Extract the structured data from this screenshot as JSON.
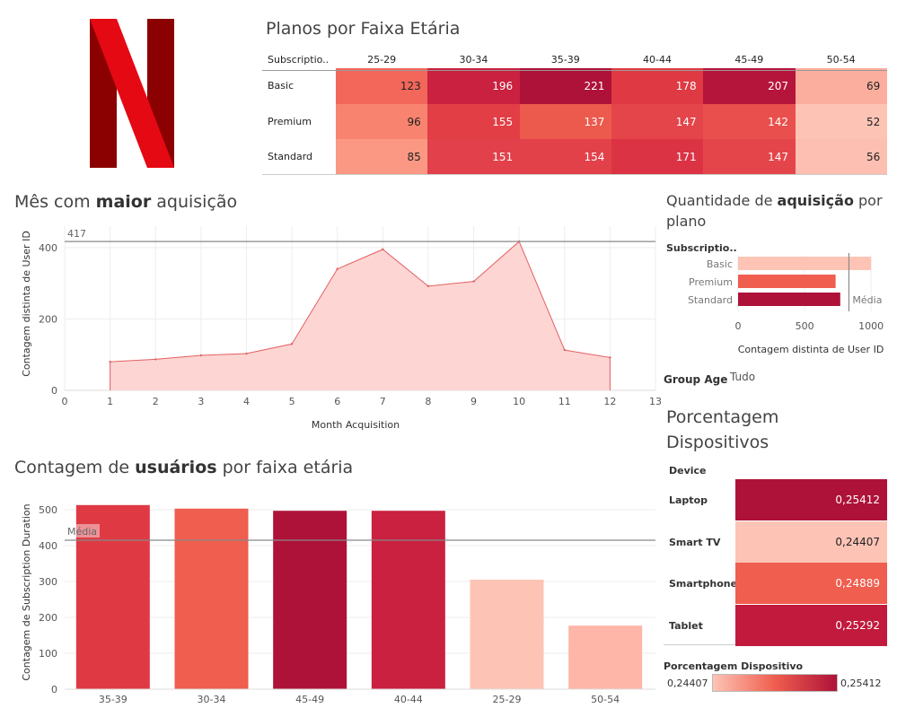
{
  "colors": {
    "c_darkest": "#AE1239",
    "c_dark": "#C9213F",
    "c_mid": "#DF3A44",
    "c_midlight": "#EF5E4E",
    "c_light": "#F7836D",
    "c_lighter": "#FCA58E",
    "c_palest": "#FDC4B6",
    "area_fill": "#FDD5D3",
    "area_line": "#E26062",
    "ref_line": "#9E9E9E",
    "logo_dark": "#8B0000",
    "logo_red": "#E50914"
  },
  "logo": {
    "icon": "netflix-n-logo"
  },
  "plans_table": {
    "title": "Planos por Faixa Etária",
    "corner_header": "Subscriptio..",
    "columns": [
      "25-29",
      "30-34",
      "35-39",
      "40-44",
      "45-49",
      "50-54"
    ],
    "rows": [
      {
        "label": "Basic",
        "values": [
          "123",
          "196",
          "221",
          "178",
          "207",
          "69"
        ],
        "colors": [
          "#F2675A",
          "#C9213F",
          "#AE1239",
          "#DF3A44",
          "#B6153B",
          "#FCAE9E"
        ]
      },
      {
        "label": "Premium",
        "values": [
          "96",
          "155",
          "137",
          "147",
          "142",
          "52"
        ],
        "colors": [
          "#F8846F",
          "#E13E45",
          "#EC5A4D",
          "#E4454A",
          "#E94F4C",
          "#FDC4B6"
        ]
      },
      {
        "label": "Standard",
        "values": [
          "85",
          "151",
          "154",
          "171",
          "147",
          "56"
        ],
        "colors": [
          "#FA9884",
          "#E2414B",
          "#E2414A",
          "#DB3344",
          "#E4454A",
          "#FDBFB1"
        ]
      }
    ]
  },
  "month_chart": {
    "title_pre": "Mês com ",
    "title_bold": "maior",
    "title_post": " aquisição"
  },
  "plan_qty_chart": {
    "title_pre": "Quantidade de ",
    "title_bold": "aquisição",
    "title_post": " por",
    "title_line2": "plano",
    "header": "Subscriptio..",
    "group_age_label": "Group Age",
    "group_age_value": "Tudo"
  },
  "age_chart": {
    "title_pre": "Contagem de ",
    "title_bold": "usuários",
    "title_post": " por faixa etária"
  },
  "device_table": {
    "title_line1": "Porcentagem",
    "title_line2": "Dispositivos",
    "header": "Device",
    "rows": [
      {
        "label": "Laptop",
        "value": "0,25412",
        "color": "#AE1239",
        "text_color": "#ffffff"
      },
      {
        "label": "Smart TV",
        "value": "0,24407",
        "color": "#FDC4B6",
        "text_color": "#222222"
      },
      {
        "label": "Smartphone",
        "value": "0,24889",
        "color": "#EF5E4E",
        "text_color": "#ffffff"
      },
      {
        "label": "Tablet",
        "value": "0,25292",
        "color": "#C11A3D",
        "text_color": "#ffffff"
      }
    ],
    "legend_title": "Porcentagem Dispositivo",
    "legend_min": "0,24407",
    "legend_max": "0,25412"
  },
  "chart_data": [
    {
      "type": "area",
      "title": "Mês com maior aquisição",
      "xlabel": "Month Acquisition",
      "ylabel": "Contagem distinta de User ID",
      "x": [
        1,
        2,
        3,
        4,
        5,
        6,
        7,
        8,
        9,
        10,
        11,
        12
      ],
      "values": [
        80,
        87,
        98,
        103,
        130,
        340,
        395,
        292,
        305,
        417,
        113,
        92
      ],
      "xlim": [
        0,
        13
      ],
      "ylim": [
        0,
        460
      ],
      "xticks": [
        "0",
        "1",
        "2",
        "3",
        "4",
        "5",
        "6",
        "7",
        "8",
        "9",
        "10",
        "11",
        "12",
        "13"
      ],
      "yticks": [
        "0",
        "200",
        "400"
      ],
      "reference_line": {
        "value": 417,
        "label": "417"
      },
      "grid": true
    },
    {
      "type": "bar",
      "orientation": "horizontal",
      "title": "Quantidade de aquisição por plano",
      "xlabel": "Contagem distinta de User ID",
      "categories": [
        "Basic",
        "Premium",
        "Standard"
      ],
      "values": [
        999,
        733,
        768
      ],
      "colors": [
        "#FDC4B6",
        "#EF5E4E",
        "#AE1239"
      ],
      "xlim": [
        0,
        1100
      ],
      "xticks": [
        "0",
        "500",
        "1000"
      ],
      "reference_line": {
        "value": 833,
        "label": "Média"
      },
      "grid": true
    },
    {
      "type": "bar",
      "title": "Contagem de usuários por faixa etária",
      "ylabel": "Contagem de Subscription Duration",
      "categories": [
        "35-39",
        "30-34",
        "45-49",
        "40-44",
        "25-29",
        "50-54"
      ],
      "values": [
        513,
        503,
        497,
        497,
        305,
        177
      ],
      "colors": [
        "#DF3A44",
        "#EF5E4E",
        "#AE1239",
        "#C9213F",
        "#FDC4B6",
        "#FDB6A8"
      ],
      "ylim": [
        0,
        550
      ],
      "yticks": [
        "0",
        "100",
        "200",
        "300",
        "400",
        "500"
      ],
      "reference_line": {
        "value": 415,
        "label": "Média"
      },
      "grid": true
    }
  ]
}
